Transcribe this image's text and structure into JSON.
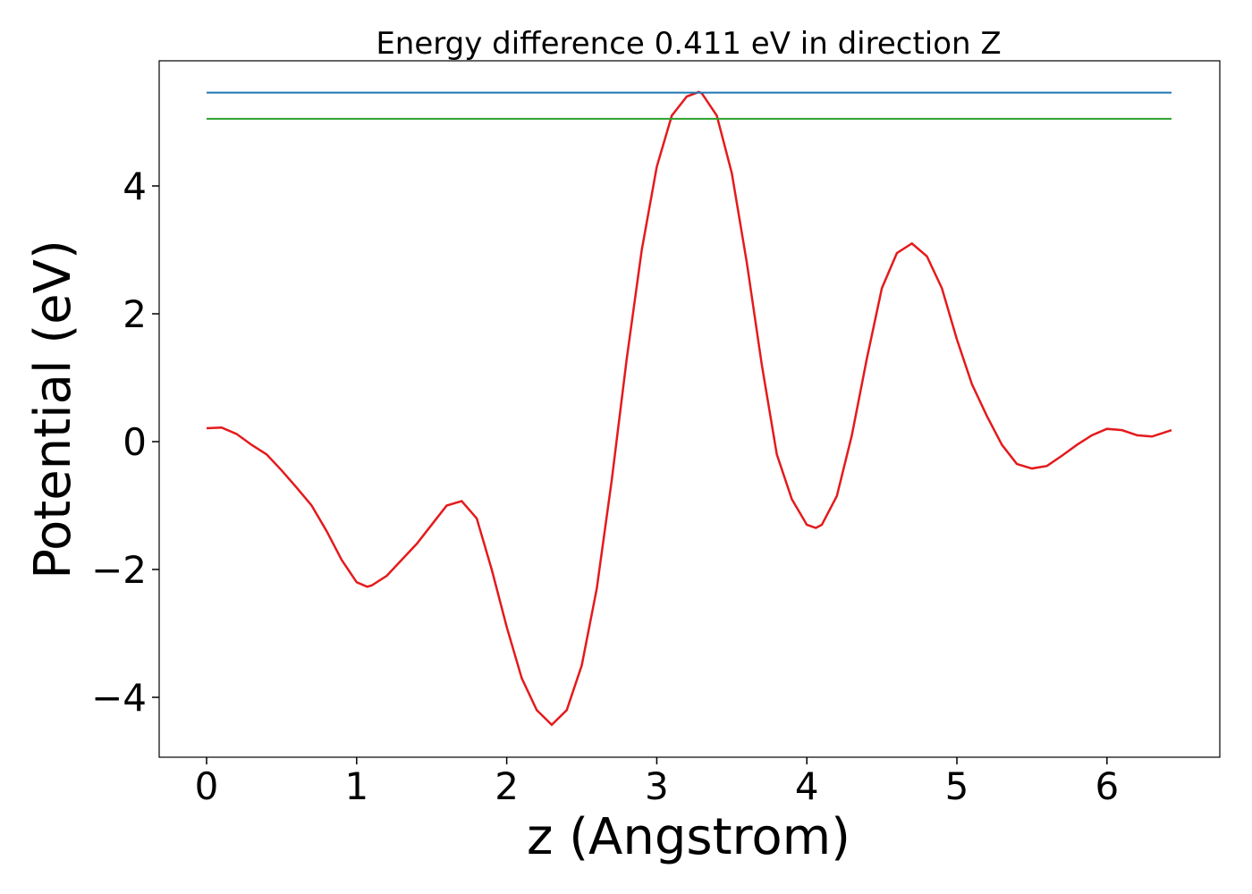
{
  "chart_data": {
    "type": "line",
    "title": "Energy difference 0.411 eV in direction Z",
    "x_label": "z (Angstrom)",
    "y_label": "Potential (eV)",
    "xlim": [
      -0.316,
      6.752
    ],
    "ylim": [
      -4.937,
      5.958
    ],
    "xticks": [
      0,
      1,
      2,
      3,
      4,
      5,
      6
    ],
    "yticks": [
      {
        "value": -4,
        "label": "−4"
      },
      {
        "value": -2,
        "label": "−2"
      },
      0,
      2,
      4
    ],
    "series": [
      {
        "color": "#e41a1c",
        "x": [
          0,
          0.1,
          0.2,
          0.3,
          0.4,
          0.5,
          0.6,
          0.7,
          0.8,
          0.9,
          1.0,
          1.07,
          1.1,
          1.2,
          1.3,
          1.4,
          1.5,
          1.6,
          1.7,
          1.8,
          1.9,
          2.0,
          2.1,
          2.2,
          2.3,
          2.4,
          2.5,
          2.6,
          2.7,
          2.8,
          2.9,
          3.0,
          3.1,
          3.2,
          3.28,
          3.3,
          3.4,
          3.5,
          3.6,
          3.7,
          3.8,
          3.9,
          4.0,
          4.06,
          4.1,
          4.2,
          4.3,
          4.4,
          4.5,
          4.6,
          4.7,
          4.8,
          4.9,
          5.0,
          5.1,
          5.2,
          5.3,
          5.4,
          5.5,
          5.6,
          5.7,
          5.8,
          5.9,
          6.0,
          6.1,
          6.2,
          6.3,
          6.43
        ],
        "values": [
          0.21,
          0.22,
          0.12,
          -0.05,
          -0.2,
          -0.45,
          -0.72,
          -1.0,
          -1.4,
          -1.85,
          -2.2,
          -2.27,
          -2.25,
          -2.1,
          -1.85,
          -1.6,
          -1.3,
          -1.0,
          -0.93,
          -1.2,
          -2.0,
          -2.9,
          -3.7,
          -4.2,
          -4.43,
          -4.2,
          -3.5,
          -2.3,
          -0.6,
          1.3,
          3.0,
          4.3,
          5.1,
          5.4,
          5.47,
          5.45,
          5.1,
          4.2,
          2.8,
          1.2,
          -0.2,
          -0.9,
          -1.3,
          -1.35,
          -1.3,
          -0.85,
          0.1,
          1.3,
          2.4,
          2.95,
          3.1,
          2.9,
          2.4,
          1.6,
          0.9,
          0.4,
          -0.05,
          -0.35,
          -0.42,
          -0.38,
          -0.22,
          -0.05,
          0.1,
          0.2,
          0.18,
          0.1,
          0.08,
          0.18
        ]
      },
      {
        "color": "#1f77b4",
        "x": [
          0,
          6.43
        ],
        "values": [
          5.46,
          5.46
        ]
      },
      {
        "color": "#2ca02c",
        "x": [
          0,
          6.43
        ],
        "values": [
          5.05,
          5.05
        ]
      }
    ]
  }
}
